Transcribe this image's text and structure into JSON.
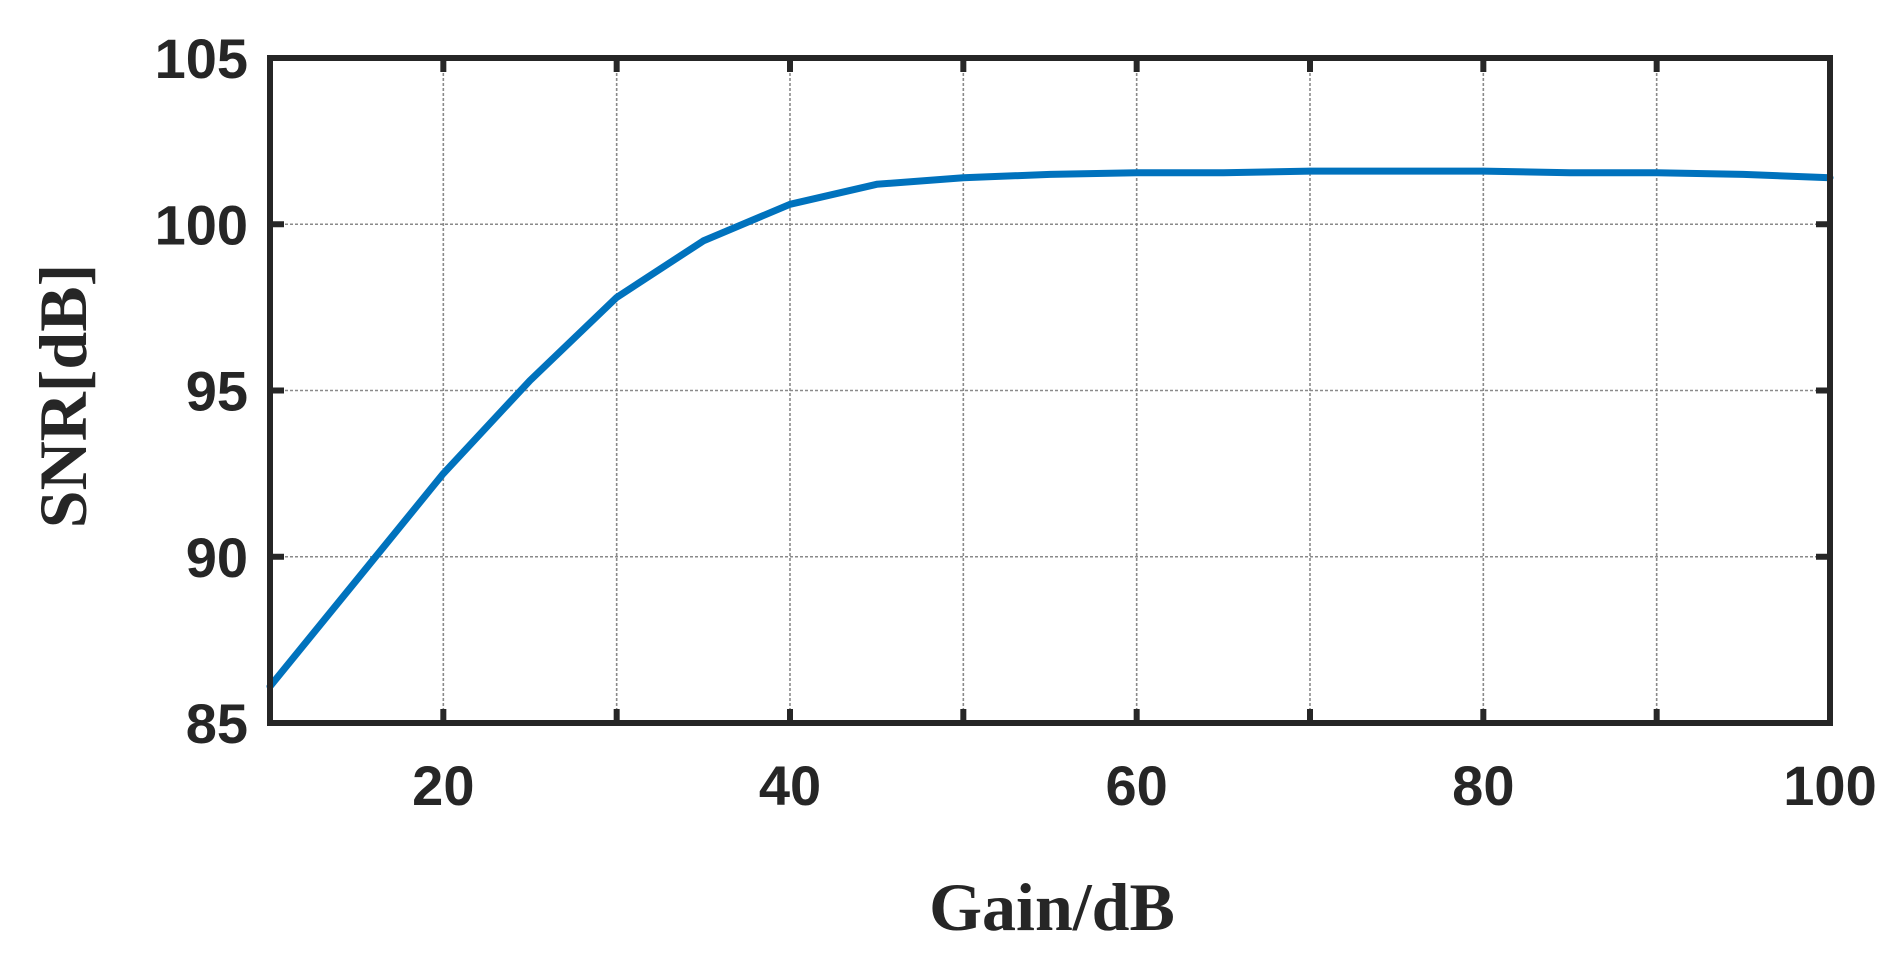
{
  "chart_data": {
    "type": "line",
    "xlabel": "Gain/dB",
    "ylabel": "SNR[dB]",
    "xlim": [
      10,
      100
    ],
    "ylim": [
      85,
      105
    ],
    "xticks": [
      20,
      40,
      60,
      80,
      100
    ],
    "yticks": [
      85,
      90,
      95,
      100,
      105
    ],
    "grid": true,
    "x_grid": [
      10,
      20,
      30,
      40,
      50,
      60,
      70,
      80,
      90,
      100
    ],
    "series": [
      {
        "color": "#0072BD",
        "x": [
          10,
          15,
          20,
          25,
          30,
          35,
          40,
          45,
          50,
          55,
          60,
          65,
          70,
          75,
          80,
          85,
          90,
          95,
          100
        ],
        "y": [
          86.1,
          89.3,
          92.5,
          95.3,
          97.8,
          99.5,
          100.6,
          101.2,
          101.4,
          101.5,
          101.55,
          101.55,
          101.6,
          101.6,
          101.6,
          101.55,
          101.55,
          101.5,
          101.4
        ]
      }
    ]
  }
}
